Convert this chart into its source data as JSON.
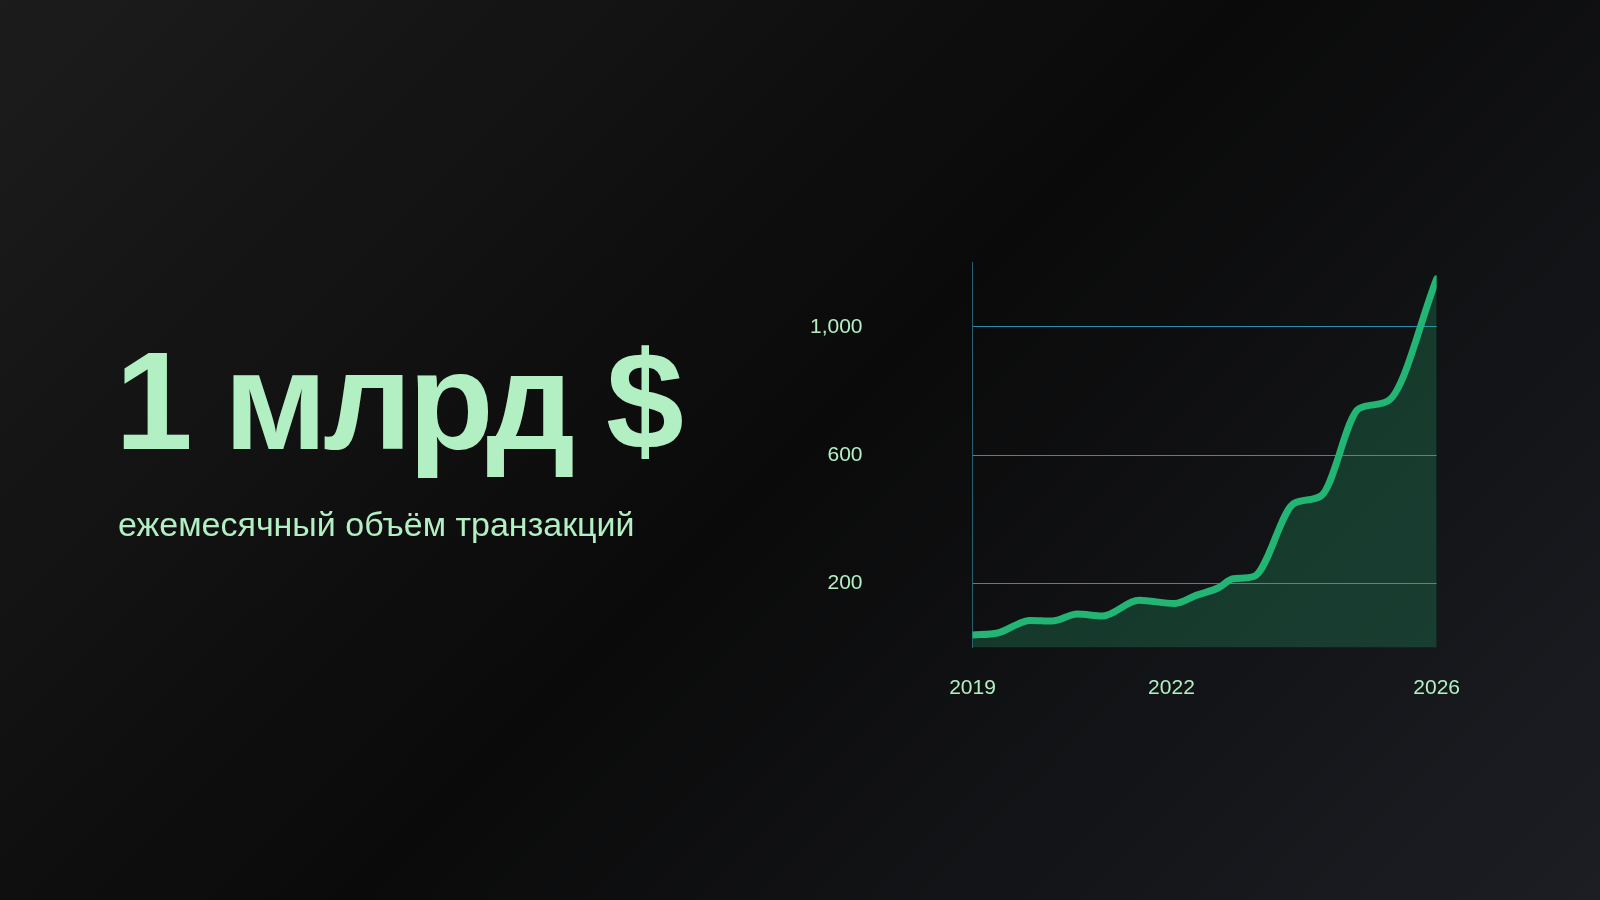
{
  "chart_data": {
    "type": "area",
    "title": "1 млрд $",
    "subtitle": "ежемесячный объём транзакций",
    "x": [
      2019.0,
      2019.38,
      2019.87,
      2020.2,
      2020.58,
      2020.96,
      2021.51,
      2022.05,
      2022.38,
      2022.71,
      2022.93,
      2023.25,
      2023.85,
      2024.26,
      2024.83,
      2025.27,
      2026.0
    ],
    "series": [
      {
        "color": "#22b573",
        "values": [
          39,
          45,
          84,
          82,
          104,
          98,
          147,
          137,
          163,
          186,
          214,
          222,
          449,
          473,
          745,
          769,
          1149
        ]
      }
    ],
    "xlim": [
      2019,
      2026
    ],
    "xticks": [
      2019,
      2022,
      2026
    ],
    "ylim": [
      0,
      1200
    ],
    "yticks": [
      200,
      600,
      {
        "value": 1000,
        "label": "1,000"
      }
    ],
    "grid": "y",
    "legend": false,
    "marker": "none",
    "line_style": "solid"
  }
}
